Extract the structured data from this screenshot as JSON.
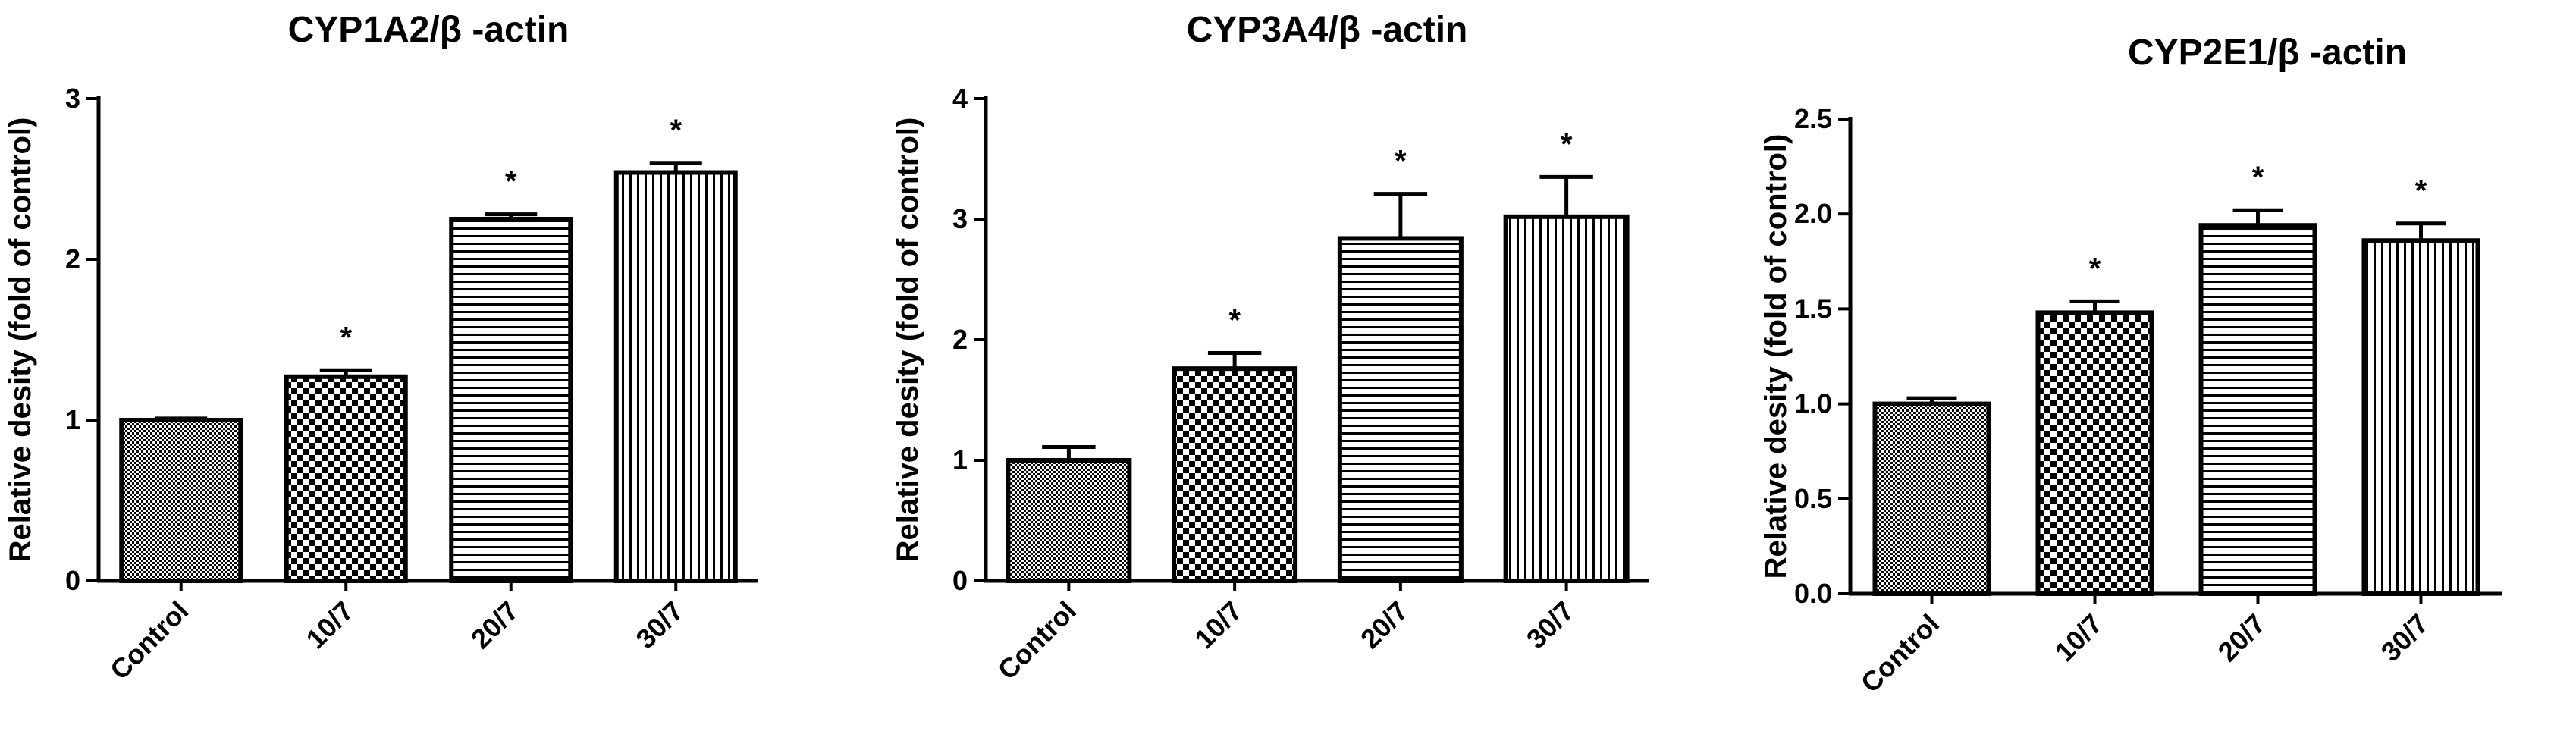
{
  "chart_data": [
    {
      "type": "bar",
      "title": "CYP1A2/β -actin",
      "ylabel": "Relative desity (fold of control)",
      "xlabel": "",
      "categories": [
        "Control",
        "10/7",
        "20/7",
        "30/7"
      ],
      "values": [
        1.0,
        1.27,
        2.25,
        2.54
      ],
      "errors": [
        0.01,
        0.04,
        0.03,
        0.06
      ],
      "annotations": [
        "",
        "*",
        "*",
        "*"
      ],
      "ylim": [
        0,
        3
      ],
      "yticks": [
        "0",
        "1",
        "2",
        "3"
      ],
      "patterns": [
        "fine-check",
        "checker",
        "horizontal-lines",
        "vertical-lines"
      ],
      "grid": false
    },
    {
      "type": "bar",
      "title": "CYP3A4/β -actin",
      "ylabel": "Relative desity (fold of control)",
      "xlabel": "",
      "categories": [
        "Control",
        "10/7",
        "20/7",
        "30/7"
      ],
      "values": [
        1.0,
        1.76,
        2.84,
        3.02
      ],
      "errors": [
        0.11,
        0.13,
        0.37,
        0.33
      ],
      "annotations": [
        "",
        "*",
        "*",
        "*"
      ],
      "ylim": [
        0,
        4
      ],
      "yticks": [
        "0",
        "1",
        "2",
        "3",
        "4"
      ],
      "patterns": [
        "fine-check",
        "checker",
        "horizontal-lines",
        "vertical-lines"
      ],
      "grid": false
    },
    {
      "type": "bar",
      "title": "CYP2E1/β -actin",
      "ylabel": "Relative desity (fold of control)",
      "xlabel": "",
      "categories": [
        "Control",
        "10/7",
        "20/7",
        "30/7"
      ],
      "values": [
        1.0,
        1.48,
        1.94,
        1.86
      ],
      "errors": [
        0.03,
        0.06,
        0.08,
        0.09
      ],
      "annotations": [
        "",
        "*",
        "*",
        "*"
      ],
      "ylim": [
        0,
        2.5
      ],
      "yticks": [
        "0.0",
        "0.5",
        "1.0",
        "1.5",
        "2.0",
        "2.5"
      ],
      "patterns": [
        "fine-check",
        "checker",
        "horizontal-lines",
        "vertical-lines"
      ],
      "grid": false
    }
  ]
}
